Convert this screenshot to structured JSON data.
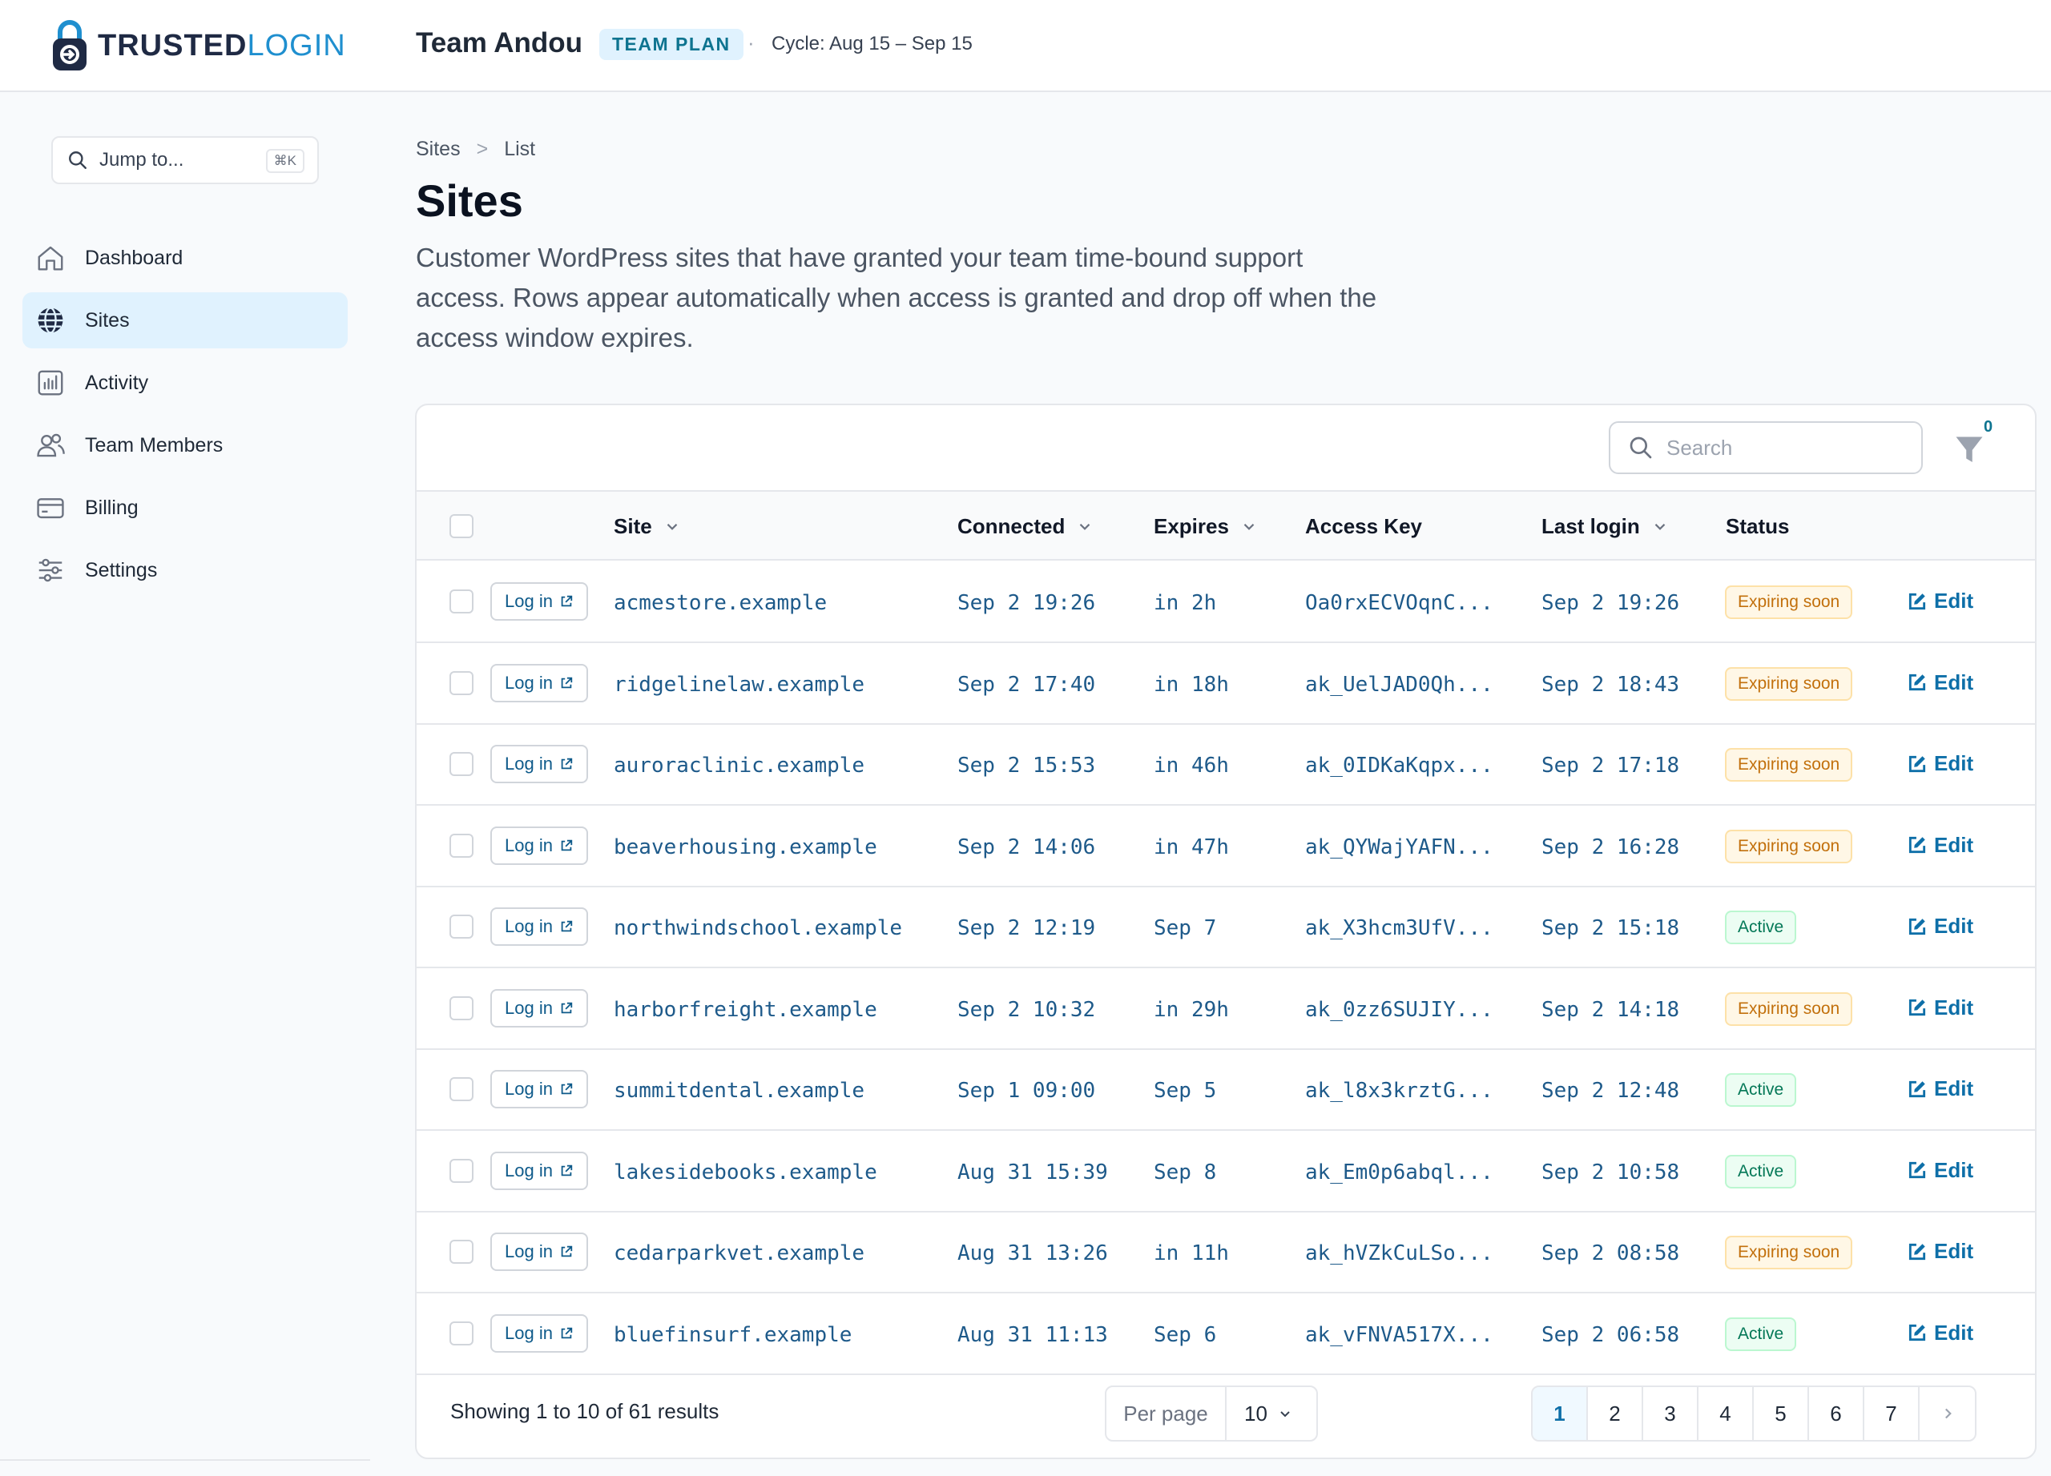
{
  "brand": {
    "name_main": "TRUSTED",
    "name_accent": "LOGIN"
  },
  "header": {
    "team_name": "Team Andou",
    "plan_badge": "TEAM PLAN",
    "separator": "·",
    "cycle": "Cycle: Aug 15 – Sep 15"
  },
  "sidebar": {
    "jump_label": "Jump to...",
    "jump_shortcut": "⌘K",
    "items": [
      {
        "label": "Dashboard",
        "icon": "home-icon"
      },
      {
        "label": "Sites",
        "icon": "globe-icon",
        "active": true
      },
      {
        "label": "Activity",
        "icon": "chart-icon"
      },
      {
        "label": "Team Members",
        "icon": "users-icon"
      },
      {
        "label": "Billing",
        "icon": "credit-card-icon"
      },
      {
        "label": "Settings",
        "icon": "sliders-icon"
      }
    ]
  },
  "breadcrumb": {
    "root": "Sites",
    "separator": ">",
    "current": "List"
  },
  "page": {
    "title": "Sites",
    "description": "Customer WordPress sites that have granted your team time-bound support access. Rows appear automatically when access is granted and drop off when the access window expires."
  },
  "table": {
    "search_placeholder": "Search",
    "filter_count": "0",
    "columns": [
      "Site",
      "Connected",
      "Expires",
      "Access Key",
      "Last login",
      "Status"
    ],
    "login_label": "Log in",
    "edit_label": "Edit",
    "rows": [
      {
        "site": "acmestore.example",
        "connected": "Sep 2 19:26",
        "expires": "in 2h",
        "key": "Oa0rxECVOqnC...",
        "last_login": "Sep 2 19:26",
        "status": "Expiring soon",
        "status_type": "warn"
      },
      {
        "site": "ridgelinelaw.example",
        "connected": "Sep 2 17:40",
        "expires": "in 18h",
        "key": "ak_UelJAD0Qh...",
        "last_login": "Sep 2 18:43",
        "status": "Expiring soon",
        "status_type": "warn"
      },
      {
        "site": "auroraclinic.example",
        "connected": "Sep 2 15:53",
        "expires": "in 46h",
        "key": "ak_0IDKaKqpx...",
        "last_login": "Sep 2 17:18",
        "status": "Expiring soon",
        "status_type": "warn"
      },
      {
        "site": "beaverhousing.example",
        "connected": "Sep 2 14:06",
        "expires": "in 47h",
        "key": "ak_QYWajYAFN...",
        "last_login": "Sep 2 16:28",
        "status": "Expiring soon",
        "status_type": "warn"
      },
      {
        "site": "northwindschool.example",
        "connected": "Sep 2 12:19",
        "expires": "Sep 7",
        "key": "ak_X3hcm3UfV...",
        "last_login": "Sep 2 15:18",
        "status": "Active",
        "status_type": "ok"
      },
      {
        "site": "harborfreight.example",
        "connected": "Sep 2 10:32",
        "expires": "in 29h",
        "key": "ak_0zz6SUJIY...",
        "last_login": "Sep 2 14:18",
        "status": "Expiring soon",
        "status_type": "warn"
      },
      {
        "site": "summitdental.example",
        "connected": "Sep 1 09:00",
        "expires": "Sep 5",
        "key": "ak_l8x3krztG...",
        "last_login": "Sep 2 12:48",
        "status": "Active",
        "status_type": "ok"
      },
      {
        "site": "lakesidebooks.example",
        "connected": "Aug 31 15:39",
        "expires": "Sep 8",
        "key": "ak_Em0p6abql...",
        "last_login": "Sep 2 10:58",
        "status": "Active",
        "status_type": "ok"
      },
      {
        "site": "cedarparkvet.example",
        "connected": "Aug 31 13:26",
        "expires": "in 11h",
        "key": "ak_hVZkCuLSo...",
        "last_login": "Sep 2 08:58",
        "status": "Expiring soon",
        "status_type": "warn"
      },
      {
        "site": "bluefinsurf.example",
        "connected": "Aug 31 11:13",
        "expires": "Sep 6",
        "key": "ak_vFNVA517X...",
        "last_login": "Sep 2 06:58",
        "status": "Active",
        "status_type": "ok"
      }
    ]
  },
  "footer": {
    "showing": "Showing 1 to 10 of 61 results",
    "per_page_label": "Per page",
    "per_page_value": "10",
    "pages": [
      "1",
      "2",
      "3",
      "4",
      "5",
      "6",
      "7"
    ],
    "current_page": "1"
  },
  "colors": {
    "accent": "#1f8fcf",
    "active_nav": "#e0f2fe",
    "warn": "#c2700c",
    "ok": "#047857"
  }
}
